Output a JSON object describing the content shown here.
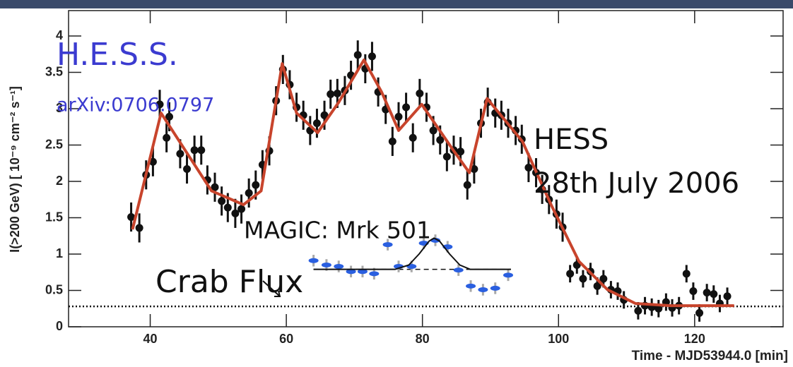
{
  "chart_data": {
    "type": "scatter",
    "y_label": "I(>200 GeV) [ 10⁻⁹ cm⁻² s⁻¹]",
    "x_label": "Time - MJD53944.0 [min]",
    "annotations": [
      "H.E.S.S.",
      "arXiv:0706.0797",
      "HESS",
      "28th July 2006",
      "MAGIC: Mrk 501",
      "Crab Flux"
    ],
    "xlim": [
      28,
      133
    ],
    "ylim": [
      0,
      4.35
    ],
    "xticks": [
      40,
      60,
      80,
      100,
      120
    ],
    "yticks": [
      0,
      0.5,
      1,
      1.5,
      2,
      2.5,
      3,
      3.5,
      4
    ],
    "crab_flux": 0.28,
    "magic_baseline": {
      "y": 0.79,
      "x": [
        64,
        93
      ]
    },
    "series": [
      {
        "style": "points",
        "color": "#111111",
        "error_color": "#111111",
        "x": [
          37.2,
          38.4,
          39.4,
          40.4,
          41.4,
          42.4,
          42.8,
          44.4,
          45.4,
          46.5,
          47.5,
          48.4,
          49.5,
          50.5,
          51.4,
          52.5,
          53.4,
          54.5,
          55.5,
          56.5,
          57.5,
          58.5,
          59.5,
          60.5,
          61.5,
          62.5,
          63.5,
          64.5,
          65.6,
          66.5,
          67.5,
          68.6,
          69.5,
          70.5,
          71.6,
          72.6,
          73.5,
          74.6,
          75.6,
          76.5,
          77.6,
          78.6,
          79.6,
          80.6,
          81.6,
          82.6,
          83.6,
          84.6,
          85.6,
          86.6,
          87.6,
          88.6,
          89.6,
          90.7,
          91.6,
          92.6,
          93.7,
          94.6,
          95.6,
          96.7,
          97.6,
          98.6,
          99.7,
          100.6,
          101.7,
          102.7,
          103.6,
          104.7,
          105.7,
          106.6,
          107.7,
          108.7,
          109.6,
          111.7,
          112.7,
          113.7,
          114.7,
          115.8,
          116.7,
          117.7,
          118.8,
          119.8,
          120.7,
          121.8,
          122.8,
          123.7,
          124.8
        ],
        "values": [
          1.51,
          1.36,
          2.09,
          2.27,
          3.06,
          2.6,
          2.89,
          2.38,
          2.17,
          2.43,
          2.43,
          2.02,
          1.92,
          1.73,
          1.64,
          1.56,
          1.62,
          1.84,
          1.95,
          2.23,
          2.42,
          3.11,
          3.54,
          3.33,
          3.02,
          2.91,
          2.7,
          2.8,
          2.91,
          3.2,
          3.21,
          3.25,
          3.46,
          3.74,
          3.55,
          3.72,
          3.23,
          2.99,
          2.55,
          2.89,
          3.02,
          2.6,
          3.21,
          3.02,
          2.7,
          2.57,
          2.34,
          2.43,
          2.41,
          1.95,
          2.17,
          2.8,
          3.09,
          2.94,
          2.91,
          2.8,
          2.7,
          2.58,
          2.19,
          2.12,
          1.89,
          1.75,
          1.55,
          1.37,
          0.73,
          0.85,
          0.66,
          0.76,
          0.56,
          0.66,
          0.51,
          0.49,
          0.37,
          0.22,
          0.29,
          0.27,
          0.25,
          0.34,
          0.26,
          0.29,
          0.73,
          0.49,
          0.19,
          0.47,
          0.45,
          0.32,
          0.42
        ],
        "errors": [
          0.2,
          0.2,
          0.2,
          0.2,
          0.2,
          0.2,
          0.2,
          0.2,
          0.2,
          0.2,
          0.2,
          0.2,
          0.2,
          0.2,
          0.2,
          0.2,
          0.2,
          0.2,
          0.2,
          0.2,
          0.2,
          0.2,
          0.2,
          0.2,
          0.2,
          0.2,
          0.2,
          0.2,
          0.2,
          0.2,
          0.2,
          0.2,
          0.2,
          0.2,
          0.2,
          0.2,
          0.2,
          0.2,
          0.2,
          0.2,
          0.2,
          0.2,
          0.2,
          0.2,
          0.2,
          0.2,
          0.2,
          0.2,
          0.2,
          0.2,
          0.2,
          0.2,
          0.2,
          0.2,
          0.2,
          0.2,
          0.2,
          0.2,
          0.2,
          0.2,
          0.2,
          0.2,
          0.2,
          0.2,
          0.12,
          0.12,
          0.12,
          0.12,
          0.12,
          0.12,
          0.12,
          0.12,
          0.12,
          0.12,
          0.12,
          0.12,
          0.12,
          0.12,
          0.12,
          0.12,
          0.12,
          0.12,
          0.12,
          0.12,
          0.12,
          0.12,
          0.12
        ]
      },
      {
        "style": "line",
        "color": "#c8442c",
        "x": [
          37.4,
          41.6,
          49,
          53.7,
          56.3,
          59.4,
          61.5,
          64.6,
          67.7,
          71.4,
          74,
          76.5,
          79.9,
          84.3,
          86.9,
          89.5,
          94.7,
          98.9,
          103,
          107.2,
          111.3,
          116.5,
          125.8
        ],
        "values": [
          1.34,
          2.94,
          1.87,
          1.68,
          1.87,
          3.62,
          2.94,
          2.67,
          3.09,
          3.67,
          3.23,
          2.7,
          3.06,
          2.46,
          2.12,
          3.14,
          2.55,
          1.68,
          0.9,
          0.51,
          0.32,
          0.29,
          0.29
        ]
      },
      {
        "style": "points",
        "color": "#2a5fe0",
        "error_color": "#a8a8a8",
        "x": [
          64.0,
          65.9,
          67.7,
          69.5,
          71.2,
          72.9,
          74.9,
          76.5,
          78.4,
          80.2,
          81.9,
          83.7,
          85.3,
          87.1,
          88.9,
          90.7,
          92.6
        ],
        "values": [
          0.91,
          0.85,
          0.83,
          0.76,
          0.76,
          0.73,
          1.13,
          0.83,
          0.83,
          1.15,
          1.19,
          1.1,
          0.78,
          0.56,
          0.51,
          0.53,
          0.71
        ],
        "errors": [
          0.08,
          0.08,
          0.08,
          0.08,
          0.08,
          0.08,
          0.08,
          0.08,
          0.08,
          0.08,
          0.08,
          0.08,
          0.08,
          0.08,
          0.08,
          0.08,
          0.08
        ]
      },
      {
        "style": "line",
        "color": "#111111",
        "x": [
          64,
          76,
          78,
          79.5,
          81,
          81.7,
          82.5,
          84,
          85.5,
          87,
          93
        ],
        "values": [
          0.79,
          0.79,
          0.85,
          1.0,
          1.18,
          1.22,
          1.18,
          1.0,
          0.85,
          0.79,
          0.79
        ]
      }
    ]
  }
}
